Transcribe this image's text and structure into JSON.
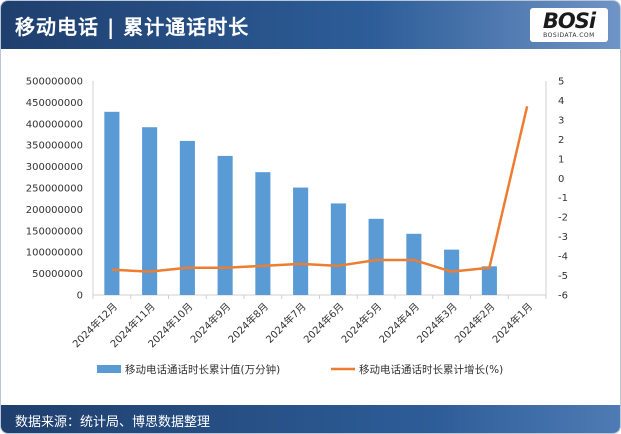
{
  "header": {
    "title": "移动电话 | 累计通话时长"
  },
  "logo": {
    "main": "BOSi",
    "sub": "BOSIDATA.COM"
  },
  "footer": {
    "source": "数据来源：统计局、博思数据整理"
  },
  "colors": {
    "bar": "#5b9bd5",
    "line": "#ed7d31",
    "header": "#1f3f6e"
  },
  "chart_data": {
    "type": "bar",
    "categories": [
      "2024年12月",
      "2024年11月",
      "2024年10月",
      "2024年9月",
      "2024年8月",
      "2024年7月",
      "2024年6月",
      "2024年5月",
      "2024年4月",
      "2024年3月",
      "2024年2月",
      "2024年1月"
    ],
    "series": [
      {
        "name": "移动电话通话时长累计值(万分钟)",
        "type": "bar",
        "axis": "left",
        "values": [
          428000000,
          392000000,
          360000000,
          325000000,
          287000000,
          251000000,
          214000000,
          178000000,
          143000000,
          106000000,
          67000000,
          null
        ]
      },
      {
        "name": "移动电话通话时长累计增长(%)",
        "type": "line",
        "axis": "right",
        "values": [
          -4.7,
          -4.8,
          -4.6,
          -4.6,
          -4.5,
          -4.4,
          -4.5,
          -4.2,
          -4.2,
          -4.8,
          -4.6,
          3.7
        ]
      }
    ],
    "y_left": {
      "min": 0,
      "max": 500000000,
      "step": 50000000
    },
    "y_right": {
      "min": -6,
      "max": 5,
      "step": 1
    },
    "legend_position": "bottom",
    "grid": false
  }
}
